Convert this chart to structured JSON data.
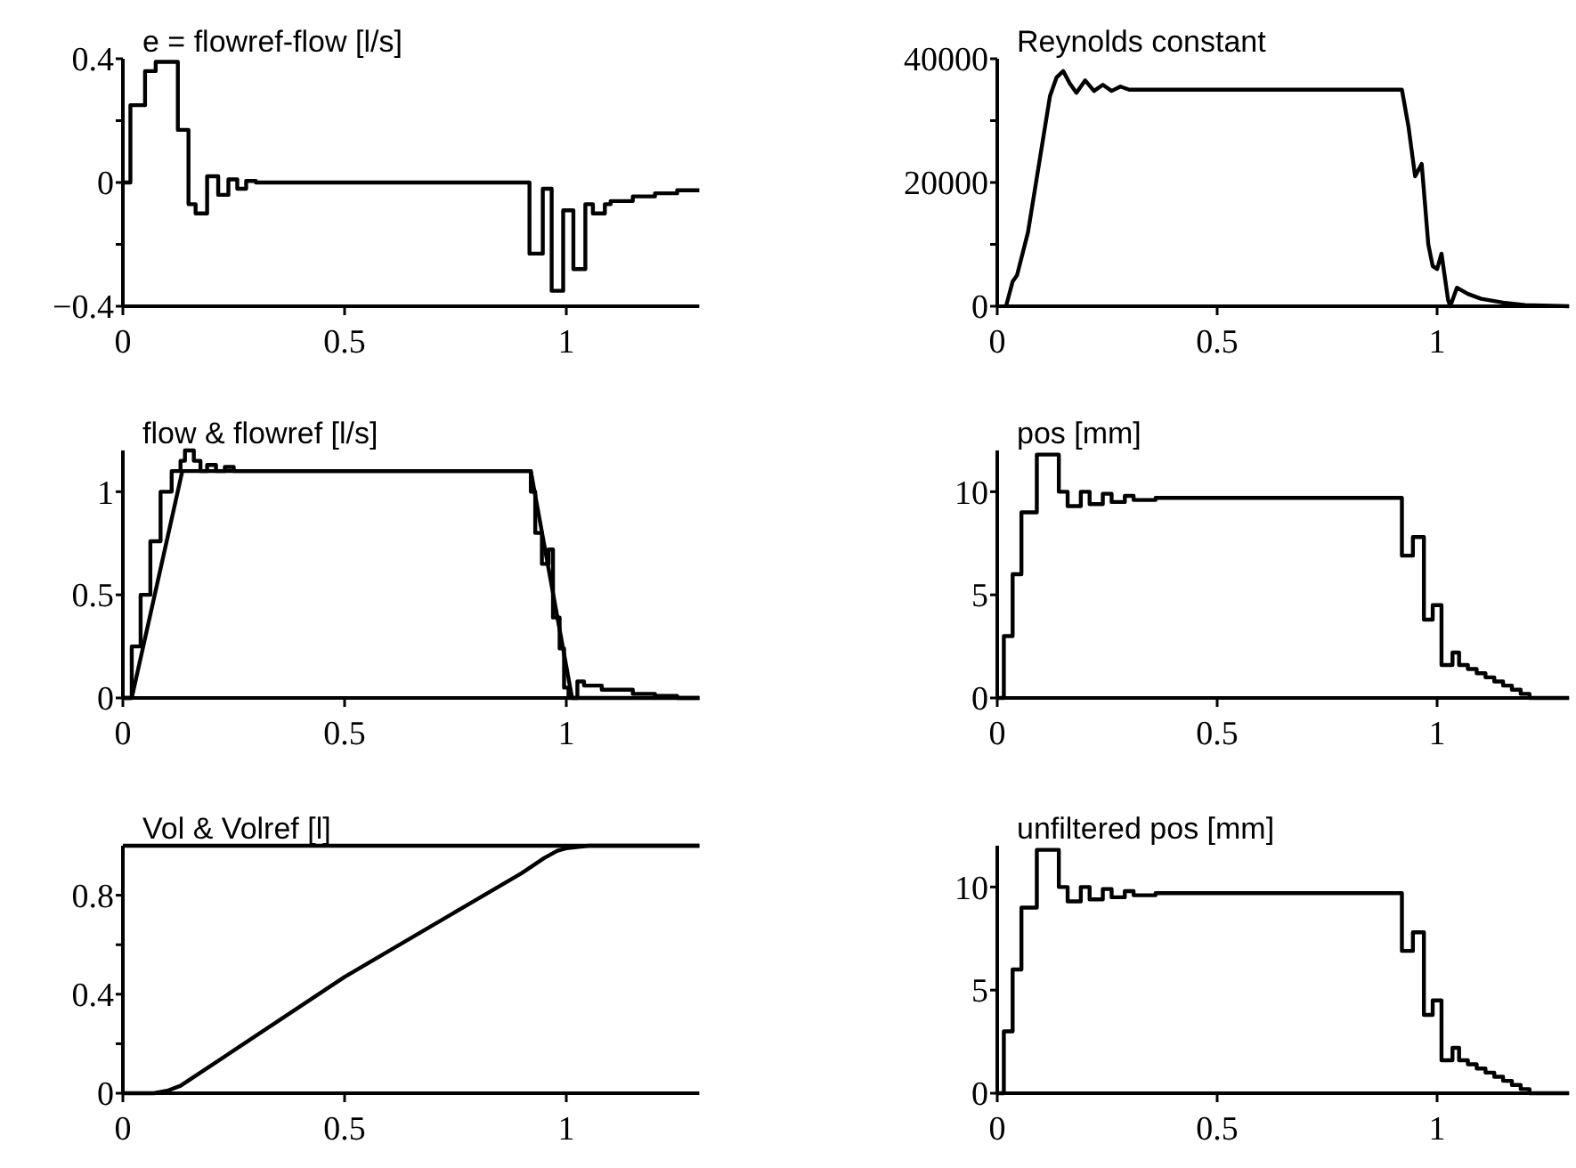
{
  "chart_data": [
    {
      "type": "step",
      "title": "e = flowref-flow [l/s]",
      "xlim": [
        0,
        1.3
      ],
      "xticks": [
        0,
        0.5,
        1
      ],
      "ylim": [
        -0.4,
        0.4
      ],
      "yticks": [
        {
          "value": -0.4,
          "label": "−0.4"
        },
        {
          "value": -0.2,
          "label": null
        },
        0,
        {
          "value": 0.2,
          "label": null
        },
        0.4
      ],
      "grid": false,
      "series": [
        {
          "color": "#000000",
          "x": [
            0,
            0.017,
            0.05,
            0.074,
            0.124,
            0.148,
            0.164,
            0.19,
            0.215,
            0.238,
            0.258,
            0.278,
            0.3,
            0.917,
            0.947,
            0.967,
            0.993,
            1.016,
            1.043,
            1.06,
            1.087,
            1.1,
            1.15,
            1.2,
            1.25,
            1.3
          ],
          "values": [
            0,
            0.25,
            0.36,
            0.39,
            0.17,
            -0.07,
            -0.1,
            0.02,
            -0.04,
            0.01,
            -0.02,
            0.005,
            0,
            -0.23,
            -0.02,
            -0.35,
            -0.09,
            -0.28,
            -0.07,
            -0.1,
            -0.07,
            -0.06,
            -0.045,
            -0.035,
            -0.025,
            -0.025
          ]
        }
      ]
    },
    {
      "type": "line",
      "title": "Reynolds constant",
      "xlim": [
        0,
        1.3
      ],
      "xticks": [
        0,
        0.5,
        1
      ],
      "ylim": [
        0,
        40000
      ],
      "yticks": [
        0,
        {
          "value": 10000,
          "label": null
        },
        20000,
        {
          "value": 30000,
          "label": null
        },
        40000
      ],
      "grid": false,
      "series": [
        {
          "color": "#000000",
          "x": [
            0.02,
            0.035,
            0.045,
            0.07,
            0.12,
            0.135,
            0.15,
            0.165,
            0.18,
            0.2,
            0.22,
            0.24,
            0.26,
            0.28,
            0.3,
            0.92,
            0.935,
            0.95,
            0.965,
            0.98,
            0.99,
            1.0,
            1.01,
            1.025,
            1.03,
            1.045,
            1.07,
            1.1,
            1.15,
            1.2,
            1.3
          ],
          "values": [
            0,
            4000,
            5000,
            12000,
            34000,
            37000,
            38000,
            36000,
            34500,
            36500,
            34800,
            35800,
            34800,
            35500,
            35000,
            35000,
            29000,
            21000,
            23000,
            10000,
            6500,
            6000,
            8500,
            1000,
            0,
            3000,
            2000,
            1200,
            600,
            200,
            0
          ]
        }
      ]
    },
    {
      "type": "step",
      "title": "flow & flowref [l/s]",
      "xlim": [
        0,
        1.3
      ],
      "xticks": [
        0,
        0.5,
        1
      ],
      "ylim": [
        0,
        1.2
      ],
      "yticks": [
        0,
        0.5,
        1
      ],
      "grid": false,
      "series": [
        {
          "color": "#000000",
          "x": [
            0,
            0.02,
            0.04,
            0.062,
            0.085,
            0.11,
            0.13,
            0.14,
            0.16,
            0.175,
            0.19,
            0.21,
            0.23,
            0.25,
            0.92,
            0.93,
            0.945,
            0.96,
            0.97,
            0.985,
            0.995,
            1.005,
            1.025,
            1.04,
            1.08,
            1.15,
            1.2,
            1.25,
            1.3
          ],
          "values": [
            0,
            0.25,
            0.5,
            0.76,
            1.0,
            1.1,
            1.15,
            1.2,
            1.15,
            1.1,
            1.13,
            1.1,
            1.12,
            1.1,
            1.0,
            0.8,
            0.65,
            0.72,
            0.39,
            0.24,
            0.05,
            0,
            0.08,
            0.06,
            0.04,
            0.02,
            0.01,
            0,
            0
          ]
        },
        {
          "type": "line",
          "color": "#000000",
          "x": [
            0,
            0.02,
            0.134,
            0.92,
            1.013,
            1.3
          ],
          "values": [
            0,
            0,
            1.1,
            1.1,
            0,
            0
          ]
        }
      ]
    },
    {
      "type": "step",
      "title": "pos [mm]",
      "xlim": [
        0,
        1.3
      ],
      "xticks": [
        0,
        0.5,
        1
      ],
      "ylim": [
        0,
        12
      ],
      "yticks": [
        0,
        5,
        10
      ],
      "grid": false,
      "series": [
        {
          "color": "#000000",
          "x": [
            0,
            0.015,
            0.035,
            0.055,
            0.09,
            0.14,
            0.16,
            0.19,
            0.21,
            0.24,
            0.26,
            0.29,
            0.31,
            0.36,
            0.92,
            0.945,
            0.97,
            0.99,
            1.01,
            1.035,
            1.05,
            1.07,
            1.09,
            1.11,
            1.13,
            1.15,
            1.17,
            1.19,
            1.21,
            1.3
          ],
          "values": [
            0,
            3,
            6,
            9,
            11.8,
            10,
            9.3,
            10,
            9.4,
            9.9,
            9.5,
            9.8,
            9.6,
            9.7,
            6.9,
            7.8,
            3.8,
            4.5,
            1.6,
            2.2,
            1.6,
            1.4,
            1.2,
            1.0,
            0.8,
            0.6,
            0.4,
            0.2,
            0,
            0
          ]
        }
      ]
    },
    {
      "type": "line",
      "title": "Vol & Volref [l]",
      "xlim": [
        0,
        1.3
      ],
      "xticks": [
        0,
        0.5,
        1
      ],
      "ylim": [
        0,
        1
      ],
      "yticks": [
        0,
        {
          "value": 0.2,
          "label": null
        },
        0.4,
        {
          "value": 0.6,
          "label": null
        },
        0.8
      ],
      "grid": false,
      "series": [
        {
          "color": "#000000",
          "x": [
            0,
            0.07,
            0.1,
            0.13,
            0.5,
            0.9,
            0.95,
            0.98,
            1.0,
            1.05,
            1.3
          ],
          "values": [
            0,
            0,
            0.01,
            0.03,
            0.47,
            0.89,
            0.95,
            0.98,
            0.99,
            1.0,
            1.0
          ]
        },
        {
          "color": "#000000",
          "x": [
            0,
            1.3
          ],
          "values": [
            1,
            1
          ]
        }
      ]
    },
    {
      "type": "step",
      "title": "unfiltered pos [mm]",
      "xlim": [
        0,
        1.3
      ],
      "xticks": [
        0,
        0.5,
        1
      ],
      "ylim": [
        0,
        12
      ],
      "yticks": [
        0,
        5,
        10
      ],
      "grid": false,
      "series": [
        {
          "color": "#000000",
          "x": [
            0,
            0.015,
            0.035,
            0.055,
            0.09,
            0.14,
            0.16,
            0.19,
            0.21,
            0.24,
            0.26,
            0.29,
            0.31,
            0.36,
            0.92,
            0.945,
            0.97,
            0.99,
            1.01,
            1.035,
            1.05,
            1.07,
            1.09,
            1.11,
            1.13,
            1.15,
            1.17,
            1.19,
            1.21,
            1.3
          ],
          "values": [
            0,
            3,
            6,
            9,
            11.8,
            10,
            9.3,
            10,
            9.4,
            9.9,
            9.5,
            9.8,
            9.6,
            9.7,
            6.9,
            7.8,
            3.8,
            4.5,
            1.6,
            2.2,
            1.6,
            1.4,
            1.2,
            1.0,
            0.8,
            0.6,
            0.4,
            0.2,
            0,
            0
          ]
        }
      ]
    }
  ]
}
